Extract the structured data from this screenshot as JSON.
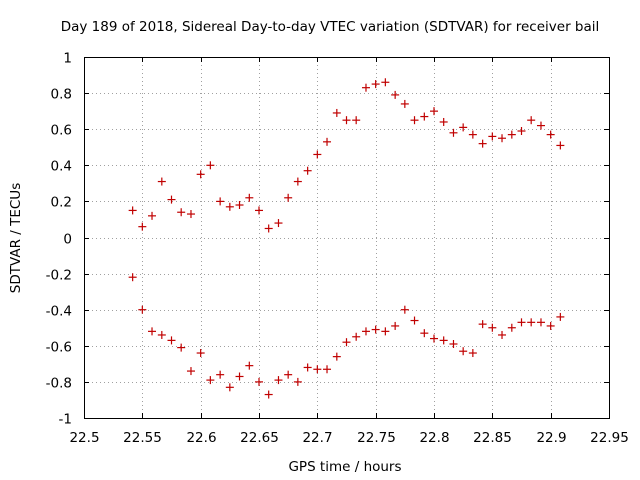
{
  "chart_data": {
    "type": "scatter",
    "title": "Day 189 of 2018, Sidereal Day-to-day VTEC variation (SDTVAR) for receiver bail",
    "xlabel": "GPS time / hours",
    "ylabel": "SDTVAR / TECUs",
    "xlim": [
      22.5,
      22.95
    ],
    "ylim": [
      -1,
      1
    ],
    "x_ticks": [
      22.5,
      22.55,
      22.6,
      22.65,
      22.7,
      22.75,
      22.8,
      22.85,
      22.9,
      22.95
    ],
    "x_tick_labels": [
      "22.5",
      "22.55",
      "22.6",
      "22.65",
      "22.7",
      "22.75",
      "22.8",
      "22.85",
      "22.9",
      "22.95"
    ],
    "y_ticks": [
      -1,
      -0.8,
      -0.6,
      -0.4,
      -0.2,
      0,
      0.2,
      0.4,
      0.6,
      0.8,
      1
    ],
    "y_tick_labels": [
      "-1",
      "-0.8",
      "-0.6",
      "-0.4",
      "-0.2",
      "0",
      "0.2",
      "0.4",
      "0.6",
      "0.8",
      "1"
    ],
    "grid": true,
    "marker": "+",
    "color": "#c00000",
    "series": [
      {
        "name": "upper",
        "x": [
          22.5417,
          22.55,
          22.5583,
          22.5667,
          22.575,
          22.5833,
          22.5917,
          22.6,
          22.6083,
          22.6167,
          22.625,
          22.6333,
          22.6417,
          22.65,
          22.6583,
          22.6667,
          22.675,
          22.6833,
          22.6917,
          22.7,
          22.7083,
          22.7167,
          22.725,
          22.7333,
          22.7417,
          22.75,
          22.7583,
          22.7667,
          22.775,
          22.7833,
          22.7917,
          22.8,
          22.8083,
          22.8167,
          22.825,
          22.8333,
          22.8417,
          22.85,
          22.8583,
          22.8667,
          22.875,
          22.8833,
          22.8917,
          22.9,
          22.9083
        ],
        "y": [
          0.15,
          0.06,
          0.12,
          0.31,
          0.21,
          0.14,
          0.13,
          0.35,
          0.4,
          0.2,
          0.17,
          0.18,
          0.22,
          0.15,
          0.05,
          0.08,
          0.22,
          0.31,
          0.37,
          0.46,
          0.53,
          0.69,
          0.65,
          0.65,
          0.83,
          0.85,
          0.86,
          0.79,
          0.74,
          0.65,
          0.67,
          0.7,
          0.64,
          0.58,
          0.61,
          0.57,
          0.52,
          0.56,
          0.55,
          0.57,
          0.59,
          0.65,
          0.62,
          0.57,
          0.51
        ]
      },
      {
        "name": "lower",
        "x": [
          22.5417,
          22.55,
          22.5583,
          22.5667,
          22.575,
          22.5833,
          22.5917,
          22.6,
          22.6083,
          22.6167,
          22.625,
          22.6333,
          22.6417,
          22.65,
          22.6583,
          22.6667,
          22.675,
          22.6833,
          22.6917,
          22.7,
          22.7083,
          22.7167,
          22.725,
          22.7333,
          22.7417,
          22.75,
          22.7583,
          22.7667,
          22.775,
          22.7833,
          22.7917,
          22.8,
          22.8083,
          22.8167,
          22.825,
          22.8333,
          22.8417,
          22.85,
          22.8583,
          22.8667,
          22.875,
          22.8833,
          22.8917,
          22.9,
          22.9083
        ],
        "y": [
          -0.22,
          -0.4,
          -0.52,
          -0.54,
          -0.57,
          -0.61,
          -0.74,
          -0.64,
          -0.79,
          -0.76,
          -0.83,
          -0.77,
          -0.71,
          -0.8,
          -0.87,
          -0.79,
          -0.76,
          -0.8,
          -0.72,
          -0.73,
          -0.73,
          -0.66,
          -0.58,
          -0.55,
          -0.52,
          -0.51,
          -0.52,
          -0.49,
          -0.4,
          -0.46,
          -0.53,
          -0.56,
          -0.57,
          -0.59,
          -0.63,
          -0.64,
          -0.48,
          -0.5,
          -0.54,
          -0.5,
          -0.47,
          -0.47,
          -0.47,
          -0.49,
          -0.44
        ]
      }
    ]
  }
}
